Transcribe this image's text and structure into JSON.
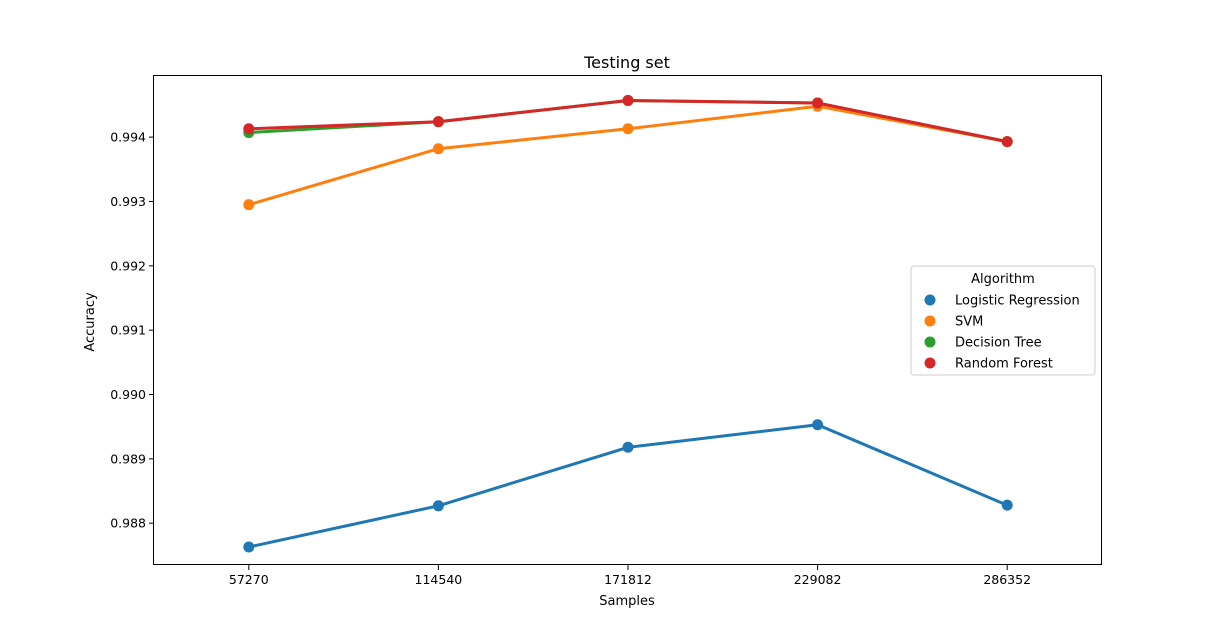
{
  "chart_data": {
    "type": "line",
    "title": "Testing set",
    "xlabel": "Samples",
    "ylabel": "Accuracy",
    "categories": [
      "57270",
      "114540",
      "171812",
      "229082",
      "286352"
    ],
    "ylim": [
      0.98735,
      0.99495
    ],
    "yticks": [
      "0.988",
      "0.989",
      "0.990",
      "0.991",
      "0.992",
      "0.993",
      "0.994"
    ],
    "grid": false,
    "legend": {
      "title": "Algorithm",
      "placement": "center-right"
    },
    "series": [
      {
        "name": "Logistic Regression",
        "color": "#1f77b4",
        "values": [
          0.98763,
          0.98827,
          0.98918,
          0.98953,
          0.98828
        ]
      },
      {
        "name": "SVM",
        "color": "#ff7f0e",
        "values": [
          0.99295,
          0.99382,
          0.99413,
          0.99448,
          0.99393
        ]
      },
      {
        "name": "Decision Tree",
        "color": "#2ca02c",
        "values": [
          0.99407,
          0.99424,
          0.99457,
          0.99453,
          0.99393
        ]
      },
      {
        "name": "Random Forest",
        "color": "#d62728",
        "values": [
          0.99413,
          0.99424,
          0.99457,
          0.99453,
          0.99393
        ]
      }
    ]
  }
}
